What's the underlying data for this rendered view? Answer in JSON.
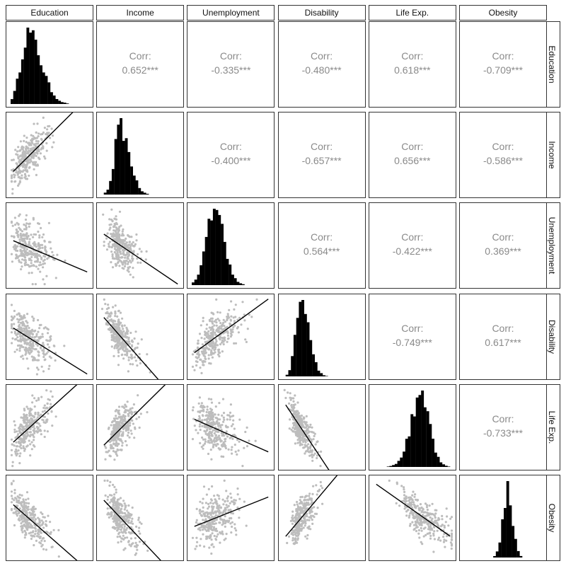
{
  "chart_data": {
    "type": "scatter-matrix",
    "variables": [
      "Education",
      "Income",
      "Unemployment",
      "Disability",
      "Life Exp.",
      "Obesity"
    ],
    "corr_label": "Corr:",
    "correlations": [
      {
        "row": "Education",
        "col": "Income",
        "value": "0.652***"
      },
      {
        "row": "Education",
        "col": "Unemployment",
        "value": "-0.335***"
      },
      {
        "row": "Education",
        "col": "Disability",
        "value": "-0.480***"
      },
      {
        "row": "Education",
        "col": "Life Exp.",
        "value": "0.618***"
      },
      {
        "row": "Education",
        "col": "Obesity",
        "value": "-0.709***"
      },
      {
        "row": "Income",
        "col": "Unemployment",
        "value": "-0.400***"
      },
      {
        "row": "Income",
        "col": "Disability",
        "value": "-0.657***"
      },
      {
        "row": "Income",
        "col": "Life Exp.",
        "value": "0.656***"
      },
      {
        "row": "Income",
        "col": "Obesity",
        "value": "-0.586***"
      },
      {
        "row": "Unemployment",
        "col": "Disability",
        "value": "0.564***"
      },
      {
        "row": "Unemployment",
        "col": "Life Exp.",
        "value": "-0.422***"
      },
      {
        "row": "Unemployment",
        "col": "Obesity",
        "value": "0.369***"
      },
      {
        "row": "Disability",
        "col": "Life Exp.",
        "value": "-0.749***"
      },
      {
        "row": "Disability",
        "col": "Obesity",
        "value": "0.617***"
      },
      {
        "row": "Life Exp.",
        "col": "Obesity",
        "value": "-0.733***"
      }
    ],
    "diagonal": "histogram",
    "lower": "scatter with linear fit",
    "colors": {
      "points": "#bdbdbd",
      "fit_line": "#000000",
      "histogram": "#000000",
      "corr_text": "#8a8a8a"
    }
  }
}
